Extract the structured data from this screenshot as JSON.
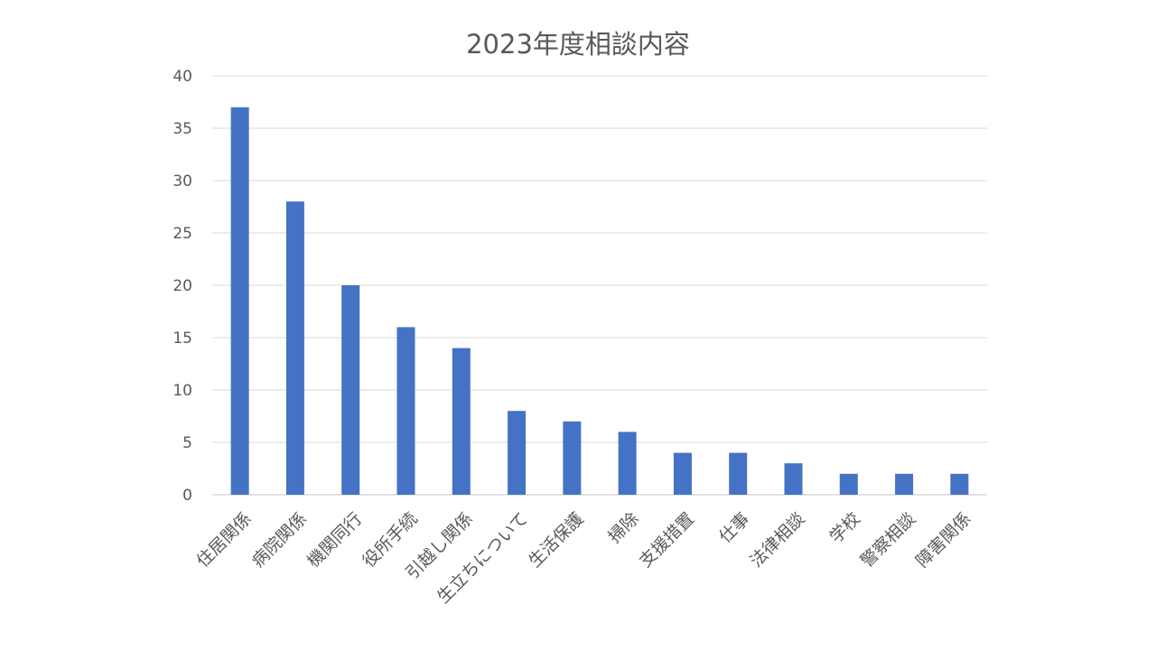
{
  "chart_data": {
    "type": "bar",
    "title": "2023年度相談内容",
    "xlabel": "",
    "ylabel": "",
    "categories": [
      "住居関係",
      "病院関係",
      "機関同行",
      "役所手続",
      "引越し関係",
      "生立ちについて",
      "生活保護",
      "掃除",
      "支援措置",
      "仕事",
      "法律相談",
      "学校",
      "警察相談",
      "障害関係"
    ],
    "values": [
      37,
      28,
      20,
      16,
      14,
      8,
      7,
      6,
      4,
      4,
      3,
      2,
      2,
      2
    ],
    "ylim": [
      0,
      40
    ],
    "yticks": [
      0,
      5,
      10,
      15,
      20,
      25,
      30,
      35,
      40
    ],
    "grid": true,
    "legend": "none",
    "bar_color": "#4472C4",
    "grid_color": "#D9D9D9"
  }
}
